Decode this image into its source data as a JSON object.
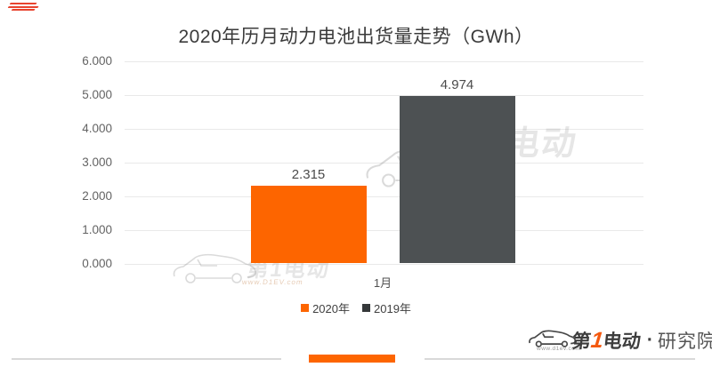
{
  "title": "2020年历月动力电池出货量走势（GWh）",
  "chart_data": {
    "type": "bar",
    "title": "2020年历月动力电池出货量走势（GWh）",
    "categories": [
      "1月"
    ],
    "series": [
      {
        "name": "2020年",
        "values": [
          2.315
        ],
        "value_labels": [
          "2.315"
        ],
        "color": "#fd6500"
      },
      {
        "name": "2019年",
        "values": [
          4.974
        ],
        "value_labels": [
          "4.974"
        ],
        "color": "#4d5153"
      }
    ],
    "xlabel": "",
    "ylabel": "",
    "ylim": [
      0,
      6
    ],
    "yticks": [
      6,
      5,
      4,
      3,
      2,
      1,
      0
    ],
    "ytick_labels": [
      "6.000",
      "5.000",
      "4.000",
      "3.000",
      "2.000",
      "1.000",
      "0.000"
    ],
    "grid": true,
    "legend_position": "bottom-center"
  },
  "legend": {
    "items": [
      {
        "label": "2020年",
        "color": "#fd6500"
      },
      {
        "label": "2019年",
        "color": "#35383a"
      }
    ]
  },
  "watermark": {
    "brand_text": "第1电动",
    "url_text": "www.D1EV.com"
  },
  "footer": {
    "brand_prefix": "第",
    "brand_number": "1",
    "brand_suffix": "电动",
    "separator": "·",
    "org": "研究院",
    "url_small": "www.d1ev.com",
    "accent_color": "#fd6500",
    "line_color": "#d9d9d9"
  },
  "decor": {
    "accent_mark_color": "#e8432e"
  }
}
